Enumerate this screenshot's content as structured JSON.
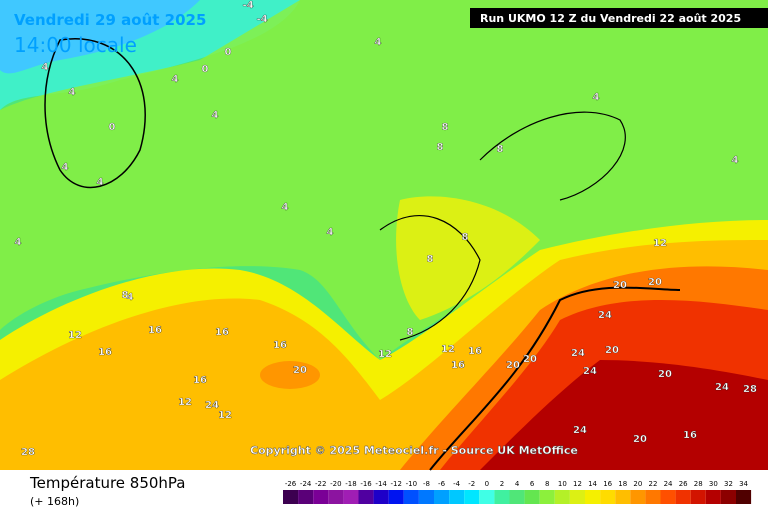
{
  "header": {
    "date": "Vendredi 29 août 2025",
    "time": "14:00 locale",
    "run": "Run UKMO 12 Z du Vendredi 22 août 2025"
  },
  "copyright": "Copyright © 2025 Meteociel.fr - Source UK MetOffice",
  "footer": {
    "title": "Température 850hPa",
    "subtitle": "(+ 168h)"
  },
  "legend": {
    "values": [
      -26,
      -24,
      -22,
      -20,
      -18,
      -16,
      -14,
      -12,
      -10,
      -8,
      -6,
      -4,
      -2,
      0,
      2,
      4,
      6,
      8,
      10,
      12,
      14,
      16,
      18,
      20,
      22,
      24,
      26,
      28,
      30,
      32,
      34
    ],
    "colors": [
      "#3c0050",
      "#5a0078",
      "#7a0096",
      "#8c14a0",
      "#a01eb4",
      "#5000a0",
      "#1e00c8",
      "#0014f0",
      "#0050ff",
      "#0078ff",
      "#00a0ff",
      "#00c8ff",
      "#00e6ff",
      "#40ffe6",
      "#40f0a0",
      "#50e678",
      "#64e650",
      "#8cf03c",
      "#b4f028",
      "#dcf014",
      "#f5f000",
      "#ffdc00",
      "#ffbe00",
      "#ff9600",
      "#ff7800",
      "#ff5000",
      "#f03200",
      "#d21400",
      "#b40000",
      "#8c0000",
      "#500000"
    ]
  },
  "map": {
    "labels": [
      -4,
      -4,
      0,
      0,
      4,
      4,
      4,
      4,
      0,
      4,
      4,
      4,
      4,
      4,
      4,
      8,
      8,
      8,
      8,
      8,
      8,
      12,
      12,
      12,
      16,
      16,
      16,
      16,
      16,
      20,
      20,
      20,
      12,
      12,
      16,
      16,
      20,
      24,
      24,
      24,
      20,
      20,
      24,
      24,
      28,
      28,
      24,
      20,
      16,
      20,
      12,
      8,
      4,
      4,
      4
    ]
  }
}
